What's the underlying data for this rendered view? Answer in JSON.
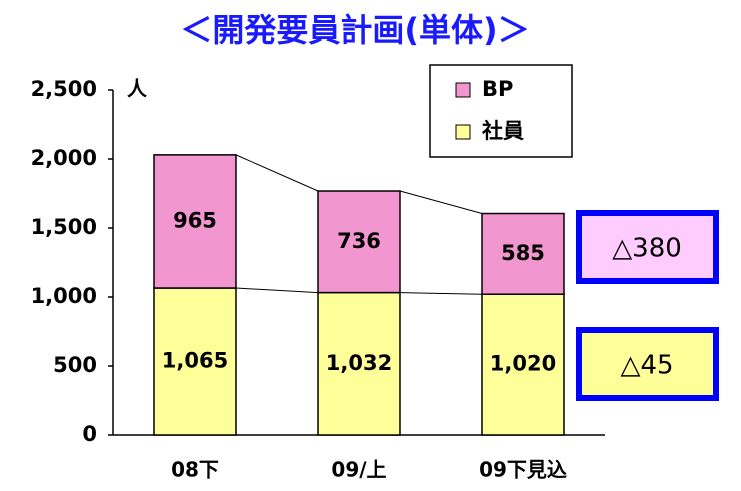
{
  "chart_data": {
    "type": "stacked_bar",
    "title": "＜開発要員計画(単体)＞",
    "y_unit": "人",
    "categories": [
      "08下",
      "09/上",
      "09下見込"
    ],
    "series": [
      {
        "name": "社員",
        "color": "#ffff99",
        "values": [
          1065,
          1032,
          1020
        ],
        "value_labels": [
          "1,065",
          "1,032",
          "1,020"
        ]
      },
      {
        "name": "BP",
        "color": "#f296cf",
        "values": [
          965,
          736,
          585
        ]
      }
    ],
    "ylim": [
      0,
      2500
    ],
    "yticks": [
      0,
      500,
      {
        "value": 1000,
        "label": "1,000"
      },
      {
        "value": 1500,
        "label": "1,500"
      },
      {
        "value": 2000,
        "label": "2,000"
      },
      {
        "value": 2500,
        "label": "2,500"
      }
    ],
    "annotations": [
      {
        "text": "△380",
        "color": "#ffccff"
      },
      {
        "text": "△45",
        "color": "#ffff99"
      }
    ]
  }
}
